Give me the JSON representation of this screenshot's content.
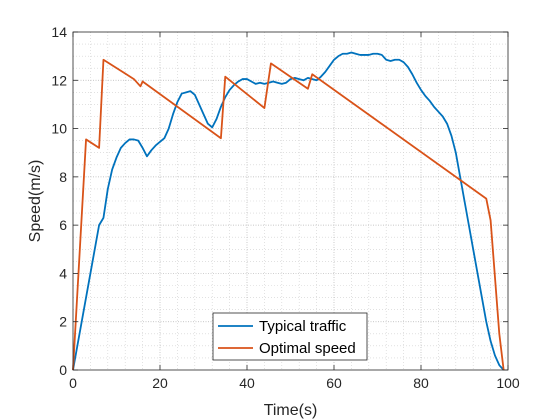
{
  "chart_data": {
    "type": "line",
    "xlabel": "Time(s)",
    "ylabel": "Speed(m/s)",
    "xlim": [
      0,
      100
    ],
    "ylim": [
      0,
      14
    ],
    "x_ticks": [
      0,
      20,
      40,
      60,
      80,
      100
    ],
    "y_ticks": [
      0,
      2,
      4,
      6,
      8,
      10,
      12,
      14
    ],
    "x_tick_labels": [
      "0",
      "20",
      "40",
      "60",
      "80",
      "100"
    ],
    "y_tick_labels": [
      "0",
      "2",
      "4",
      "6",
      "8",
      "10",
      "12",
      "14"
    ],
    "grid": true,
    "minor_grid": true,
    "legend_position": "bottom-center",
    "series": [
      {
        "name": "Typical traffic",
        "color": "#0072BD",
        "points": [
          [
            0,
            0
          ],
          [
            2,
            2
          ],
          [
            4,
            4
          ],
          [
            6,
            6
          ],
          [
            7,
            6.3
          ],
          [
            8,
            7.5
          ],
          [
            9,
            8.3
          ],
          [
            10,
            8.8
          ],
          [
            11,
            9.2
          ],
          [
            12,
            9.4
          ],
          [
            13,
            9.55
          ],
          [
            14,
            9.55
          ],
          [
            15,
            9.5
          ],
          [
            16,
            9.2
          ],
          [
            17,
            8.85
          ],
          [
            18,
            9.1
          ],
          [
            19,
            9.3
          ],
          [
            20,
            9.45
          ],
          [
            21,
            9.6
          ],
          [
            22,
            10.0
          ],
          [
            23,
            10.6
          ],
          [
            24,
            11.1
          ],
          [
            25,
            11.45
          ],
          [
            26,
            11.5
          ],
          [
            27,
            11.55
          ],
          [
            28,
            11.4
          ],
          [
            29,
            11.0
          ],
          [
            30,
            10.6
          ],
          [
            31,
            10.2
          ],
          [
            32,
            10.05
          ],
          [
            33,
            10.4
          ],
          [
            34,
            10.9
          ],
          [
            35,
            11.3
          ],
          [
            36,
            11.6
          ],
          [
            37,
            11.8
          ],
          [
            38,
            11.95
          ],
          [
            39,
            12.05
          ],
          [
            40,
            12.05
          ],
          [
            41,
            11.95
          ],
          [
            42,
            11.85
          ],
          [
            43,
            11.9
          ],
          [
            44,
            11.85
          ],
          [
            45,
            11.9
          ],
          [
            46,
            11.95
          ],
          [
            47,
            11.9
          ],
          [
            48,
            11.85
          ],
          [
            49,
            11.9
          ],
          [
            50,
            12.05
          ],
          [
            51,
            12.1
          ],
          [
            52,
            12.05
          ],
          [
            53,
            12.0
          ],
          [
            54,
            12.1
          ],
          [
            55,
            12.05
          ],
          [
            56,
            12.0
          ],
          [
            57,
            12.15
          ],
          [
            58,
            12.35
          ],
          [
            59,
            12.6
          ],
          [
            60,
            12.85
          ],
          [
            61,
            13.0
          ],
          [
            62,
            13.1
          ],
          [
            63,
            13.1
          ],
          [
            64,
            13.15
          ],
          [
            65,
            13.1
          ],
          [
            66,
            13.05
          ],
          [
            67,
            13.05
          ],
          [
            68,
            13.05
          ],
          [
            69,
            13.1
          ],
          [
            70,
            13.1
          ],
          [
            71,
            13.05
          ],
          [
            72,
            12.85
          ],
          [
            73,
            12.8
          ],
          [
            74,
            12.85
          ],
          [
            75,
            12.85
          ],
          [
            76,
            12.75
          ],
          [
            77,
            12.55
          ],
          [
            78,
            12.25
          ],
          [
            79,
            11.9
          ],
          [
            80,
            11.6
          ],
          [
            81,
            11.35
          ],
          [
            82,
            11.15
          ],
          [
            83,
            10.9
          ],
          [
            84,
            10.7
          ],
          [
            85,
            10.5
          ],
          [
            86,
            10.2
          ],
          [
            87,
            9.7
          ],
          [
            88,
            9.0
          ],
          [
            89,
            8.0
          ],
          [
            90,
            7.0
          ],
          [
            91,
            6.0
          ],
          [
            92,
            5.0
          ],
          [
            93,
            4.0
          ],
          [
            94,
            3.0
          ],
          [
            95,
            2.0
          ],
          [
            96,
            1.2
          ],
          [
            97,
            0.6
          ],
          [
            98,
            0.2
          ],
          [
            99,
            0
          ]
        ]
      },
      {
        "name": "Optimal speed",
        "color": "#D95319",
        "points": [
          [
            0,
            0
          ],
          [
            3,
            9.55
          ],
          [
            6,
            9.2
          ],
          [
            7,
            12.85
          ],
          [
            14,
            12.05
          ],
          [
            15.5,
            11.75
          ],
          [
            16,
            11.95
          ],
          [
            34,
            9.6
          ],
          [
            35,
            12.15
          ],
          [
            44,
            10.85
          ],
          [
            45.5,
            12.7
          ],
          [
            54,
            11.65
          ],
          [
            55,
            12.25
          ],
          [
            95,
            7.1
          ],
          [
            96,
            6.2
          ],
          [
            98,
            1.5
          ],
          [
            99,
            0
          ]
        ]
      }
    ]
  }
}
